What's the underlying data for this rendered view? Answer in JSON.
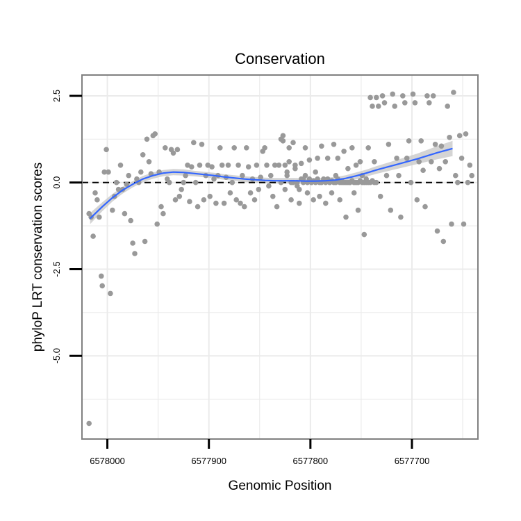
{
  "chart_data": {
    "type": "scatter",
    "title": "Conservation",
    "xlabel": "Genomic Position",
    "ylabel": "phyloP LRT conservation scores",
    "x_reversed": true,
    "xlim": [
      6578025,
      6577635
    ],
    "ylim": [
      -7.4,
      3.1
    ],
    "x_ticks": [
      {
        "value": 6578000,
        "label": "6578000"
      },
      {
        "value": 6577900,
        "label": "6577900"
      },
      {
        "value": 6577800,
        "label": "6577800"
      },
      {
        "value": 6577700,
        "label": "6577700"
      }
    ],
    "y_ticks": [
      {
        "value": 2.5,
        "label": "2.5"
      },
      {
        "value": 0.0,
        "label": "0.0"
      },
      {
        "value": -2.5,
        "label": "-2.5"
      },
      {
        "value": -5.0,
        "label": "-5.0"
      }
    ],
    "grid": true,
    "reference_line": {
      "y": 0,
      "style": "dashed"
    },
    "colors": {
      "points": "#999999",
      "smooth_line": "#3366ff",
      "confidence_band": "#cccccc",
      "panel_border": "#808080",
      "grid": "#ebebeb"
    },
    "smooth": {
      "x": [
        6578017,
        6578005,
        6577995,
        6577985,
        6577975,
        6577965,
        6577955,
        6577945,
        6577935,
        6577925,
        6577915,
        6577905,
        6577895,
        6577885,
        6577875,
        6577865,
        6577855,
        6577845,
        6577835,
        6577825,
        6577815,
        6577805,
        6577795,
        6577785,
        6577775,
        6577765,
        6577755,
        6577745,
        6577735,
        6577725,
        6577715,
        6577705,
        6577695,
        6577685,
        6577675,
        6577660,
        6577660
      ],
      "y": [
        -1.04,
        -0.7,
        -0.44,
        -0.22,
        -0.05,
        0.1,
        0.2,
        0.27,
        0.3,
        0.29,
        0.26,
        0.23,
        0.2,
        0.16,
        0.13,
        0.1,
        0.08,
        0.06,
        0.05,
        0.05,
        0.05,
        0.04,
        0.04,
        0.05,
        0.07,
        0.12,
        0.19,
        0.27,
        0.36,
        0.44,
        0.52,
        0.6,
        0.68,
        0.77,
        0.86,
        0.98,
        0.98
      ],
      "band": [
        0.16,
        0.13,
        0.11,
        0.1,
        0.09,
        0.09,
        0.09,
        0.09,
        0.09,
        0.09,
        0.08,
        0.08,
        0.08,
        0.08,
        0.08,
        0.08,
        0.08,
        0.08,
        0.08,
        0.08,
        0.08,
        0.08,
        0.08,
        0.09,
        0.09,
        0.09,
        0.1,
        0.1,
        0.11,
        0.12,
        0.13,
        0.14,
        0.15,
        0.17,
        0.19,
        0.22,
        0.22
      ]
    },
    "points": [
      [
        6578018,
        -0.9
      ],
      [
        6578016,
        -1.0
      ],
      [
        6578014,
        -1.55
      ],
      [
        6578012,
        -0.3
      ],
      [
        6578010,
        -0.5
      ],
      [
        6578008,
        -1.0
      ],
      [
        6578006,
        -2.7
      ],
      [
        6578005,
        -2.98
      ],
      [
        6578003,
        0.3
      ],
      [
        6578001,
        0.95
      ],
      [
        6577999,
        0.3
      ],
      [
        6577997,
        -3.2
      ],
      [
        6577995,
        -0.8
      ],
      [
        6577993,
        -0.4
      ],
      [
        6577991,
        0.0
      ],
      [
        6577989,
        -0.2
      ],
      [
        6577987,
        0.5
      ],
      [
        6577985,
        -0.2
      ],
      [
        6577983,
        -0.9
      ],
      [
        6577981,
        -0.05
      ],
      [
        6577979,
        0.2
      ],
      [
        6577977,
        -1.1
      ],
      [
        6577975,
        -1.75
      ],
      [
        6577973,
        -2.05
      ],
      [
        6577971,
        0.1
      ],
      [
        6577969,
        0.0
      ],
      [
        6577967,
        0.3
      ],
      [
        6577965,
        0.8
      ],
      [
        6577963,
        -1.7
      ],
      [
        6577961,
        1.25
      ],
      [
        6577959,
        0.6
      ],
      [
        6577957,
        0.25
      ],
      [
        6577955,
        1.35
      ],
      [
        6577953,
        1.4
      ],
      [
        6577951,
        -1.2
      ],
      [
        6577949,
        0.3
      ],
      [
        6577947,
        -0.7
      ],
      [
        6577945,
        -0.9
      ],
      [
        6577943,
        1.0
      ],
      [
        6577941,
        0.1
      ],
      [
        6577939,
        0.0
      ],
      [
        6577937,
        0.95
      ],
      [
        6577935,
        0.85
      ],
      [
        6577933,
        -0.5
      ],
      [
        6577931,
        0.95
      ],
      [
        6577929,
        -0.4
      ],
      [
        6577927,
        -0.2
      ],
      [
        6577925,
        0.0
      ],
      [
        6577923,
        0.2
      ],
      [
        6577921,
        0.5
      ],
      [
        6577919,
        -0.55
      ],
      [
        6577917,
        0.45
      ],
      [
        6577915,
        1.15
      ],
      [
        6577913,
        0.0
      ],
      [
        6577911,
        -0.7
      ],
      [
        6577909,
        0.5
      ],
      [
        6577907,
        1.1
      ],
      [
        6577905,
        -0.5
      ],
      [
        6577903,
        0.2
      ],
      [
        6577901,
        0.5
      ],
      [
        6577899,
        -0.4
      ],
      [
        6577897,
        0.45
      ],
      [
        6577895,
        0.1
      ],
      [
        6577893,
        -0.6
      ],
      [
        6577891,
        0.2
      ],
      [
        6577889,
        1.0
      ],
      [
        6577887,
        0.5
      ],
      [
        6577885,
        -0.6
      ],
      [
        6577883,
        0.15
      ],
      [
        6577881,
        0.5
      ],
      [
        6577879,
        -0.3
      ],
      [
        6577877,
        0.0
      ],
      [
        6577875,
        1.0
      ],
      [
        6577873,
        -0.5
      ],
      [
        6577871,
        0.5
      ],
      [
        6577869,
        -0.6
      ],
      [
        6577867,
        0.2
      ],
      [
        6577865,
        -0.7
      ],
      [
        6577863,
        1.0
      ],
      [
        6577861,
        0.45
      ],
      [
        6577859,
        -0.3
      ],
      [
        6577857,
        0.1
      ],
      [
        6577855,
        -0.5
      ],
      [
        6577853,
        0.5
      ],
      [
        6577851,
        -0.2
      ],
      [
        6577849,
        0.15
      ],
      [
        6577847,
        0.9
      ],
      [
        6577845,
        1.0
      ],
      [
        6577843,
        0.5
      ],
      [
        6577841,
        -0.1
      ],
      [
        6577839,
        0.2
      ],
      [
        6577837,
        -0.4
      ],
      [
        6577835,
        0.5
      ],
      [
        6577833,
        -0.7
      ],
      [
        6577831,
        0.5
      ],
      [
        6577829,
        0.0
      ],
      [
        6577827,
        1.35
      ],
      [
        6577825,
        0.5
      ],
      [
        6577823,
        0.2
      ],
      [
        6577821,
        0.6
      ],
      [
        6577819,
        -0.5
      ],
      [
        6577817,
        0.0
      ],
      [
        6577815,
        0.5
      ],
      [
        6577813,
        0.0
      ],
      [
        6577811,
        -0.2
      ],
      [
        6577809,
        0.1
      ],
      [
        6577807,
        0.0
      ],
      [
        6577805,
        0.2
      ],
      [
        6577803,
        0.0
      ],
      [
        6577801,
        0.1
      ],
      [
        6577799,
        0.0
      ],
      [
        6577797,
        0.05
      ],
      [
        6577795,
        0.0
      ],
      [
        6577793,
        0.1
      ],
      [
        6577791,
        0.0
      ],
      [
        6577789,
        0.0
      ],
      [
        6577787,
        0.05
      ],
      [
        6577785,
        0.0
      ],
      [
        6577783,
        0.1
      ],
      [
        6577781,
        0.0
      ],
      [
        6577779,
        0.05
      ],
      [
        6577777,
        0.0
      ],
      [
        6577775,
        0.0
      ],
      [
        6577773,
        0.1
      ],
      [
        6577771,
        0.0
      ],
      [
        6577769,
        0.05
      ],
      [
        6577767,
        0.0
      ],
      [
        6577765,
        0.0
      ],
      [
        6577763,
        0.0
      ],
      [
        6577761,
        0.0
      ],
      [
        6577759,
        0.05
      ],
      [
        6577757,
        0.0
      ],
      [
        6577755,
        0.0
      ],
      [
        6577753,
        0.0
      ],
      [
        6577751,
        0.05
      ],
      [
        6577749,
        0.0
      ],
      [
        6577747,
        0.0
      ],
      [
        6577745,
        0.1
      ],
      [
        6577743,
        0.0
      ],
      [
        6577741,
        0.0
      ],
      [
        6577739,
        0.05
      ],
      [
        6577737,
        0.0
      ],
      [
        6577735,
        0.0
      ],
      [
        6577829,
        1.25
      ],
      [
        6577827,
        1.2
      ],
      [
        6577825,
        -0.2
      ],
      [
        6577823,
        0.3
      ],
      [
        6577821,
        1.0
      ],
      [
        6577819,
        0.0
      ],
      [
        6577817,
        1.15
      ],
      [
        6577815,
        0.4
      ],
      [
        6577813,
        -0.1
      ],
      [
        6577811,
        -0.6
      ],
      [
        6577809,
        0.55
      ],
      [
        6577807,
        0.1
      ],
      [
        6577805,
        1.0
      ],
      [
        6577803,
        -0.3
      ],
      [
        6577801,
        0.65
      ],
      [
        6577799,
        0.0
      ],
      [
        6577797,
        -0.5
      ],
      [
        6577795,
        0.3
      ],
      [
        6577793,
        0.7
      ],
      [
        6577791,
        -0.4
      ],
      [
        6577789,
        1.05
      ],
      [
        6577787,
        0.1
      ],
      [
        6577785,
        -0.6
      ],
      [
        6577783,
        0.7
      ],
      [
        6577781,
        0.0
      ],
      [
        6577779,
        -0.3
      ],
      [
        6577777,
        1.1
      ],
      [
        6577775,
        0.2
      ],
      [
        6577773,
        0.7
      ],
      [
        6577771,
        -0.5
      ],
      [
        6577769,
        0.0
      ],
      [
        6577767,
        0.9
      ],
      [
        6577765,
        -1.0
      ],
      [
        6577763,
        0.4
      ],
      [
        6577761,
        0.0
      ],
      [
        6577759,
        1.0
      ],
      [
        6577757,
        -0.3
      ],
      [
        6577755,
        0.5
      ],
      [
        6577753,
        -0.8
      ],
      [
        6577751,
        0.6
      ],
      [
        6577749,
        0.2
      ],
      [
        6577747,
        -1.5
      ],
      [
        6577745,
        0.0
      ],
      [
        6577743,
        1.0
      ],
      [
        6577741,
        2.45
      ],
      [
        6577739,
        2.2
      ],
      [
        6577737,
        0.6
      ],
      [
        6577735,
        2.45
      ],
      [
        6577733,
        2.2
      ],
      [
        6577731,
        -0.4
      ],
      [
        6577729,
        2.5
      ],
      [
        6577727,
        2.3
      ],
      [
        6577725,
        0.2
      ],
      [
        6577723,
        1.1
      ],
      [
        6577721,
        -0.8
      ],
      [
        6577719,
        2.55
      ],
      [
        6577717,
        2.2
      ],
      [
        6577715,
        0.7
      ],
      [
        6577713,
        0.2
      ],
      [
        6577711,
        -1.0
      ],
      [
        6577709,
        2.5
      ],
      [
        6577707,
        2.3
      ],
      [
        6577705,
        0.7
      ],
      [
        6577703,
        1.2
      ],
      [
        6577701,
        0.0
      ],
      [
        6577699,
        2.55
      ],
      [
        6577697,
        2.3
      ],
      [
        6577695,
        -0.5
      ],
      [
        6577693,
        0.6
      ],
      [
        6577691,
        1.2
      ],
      [
        6577689,
        0.35
      ],
      [
        6577687,
        -0.7
      ],
      [
        6577685,
        2.5
      ],
      [
        6577683,
        2.3
      ],
      [
        6577681,
        0.6
      ],
      [
        6577679,
        2.5
      ],
      [
        6577677,
        1.1
      ],
      [
        6577675,
        -1.4
      ],
      [
        6577673,
        0.4
      ],
      [
        6577671,
        1.05
      ],
      [
        6577669,
        -1.7
      ],
      [
        6577667,
        0.6
      ],
      [
        6577665,
        2.2
      ],
      [
        6577663,
        1.3
      ],
      [
        6577661,
        -1.2
      ],
      [
        6577659,
        2.6
      ],
      [
        6577657,
        0.2
      ],
      [
        6577655,
        0.0
      ],
      [
        6577653,
        1.35
      ],
      [
        6577651,
        0.7
      ],
      [
        6577649,
        -1.2
      ],
      [
        6577647,
        1.4
      ],
      [
        6577645,
        0.0
      ],
      [
        6577643,
        0.5
      ],
      [
        6577641,
        0.2
      ],
      [
        6578018,
        -6.95
      ]
    ]
  }
}
